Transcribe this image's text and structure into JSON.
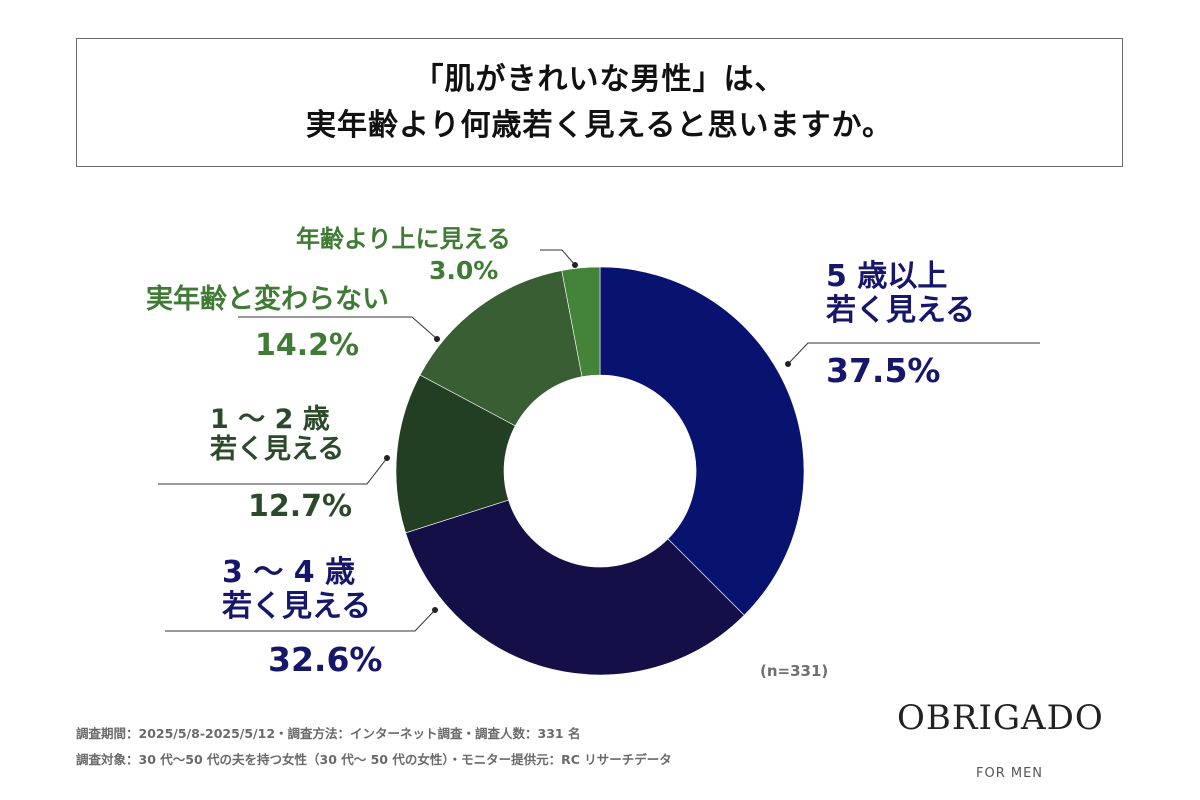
{
  "title": {
    "line1": "「肌がきれいな男性」は、",
    "line2": "実年齢より何歳若く見えると思いますか。"
  },
  "chart_data": {
    "type": "pie",
    "donut": true,
    "slices": [
      {
        "label_lines": [
          "5 歳以上",
          "若く見える"
        ],
        "value": 37.5,
        "value_text": "37.5%",
        "color": "#08136f"
      },
      {
        "label_lines": [
          "3 ～ 4 歳",
          "若く見える"
        ],
        "value": 32.6,
        "value_text": "32.6%",
        "color": "#150f48"
      },
      {
        "label_lines": [
          "1 ～ 2 歳",
          "若く見える"
        ],
        "value": 12.7,
        "value_text": "12.7%",
        "color": "#233f23"
      },
      {
        "label_lines": [
          "実年齢と変わらない"
        ],
        "value": 14.2,
        "value_text": "14.2%",
        "color": "#3a5e33"
      },
      {
        "label_lines": [
          "年齢より上に見える"
        ],
        "value": 3.0,
        "value_text": "3.0%",
        "color": "#44843a"
      }
    ],
    "sample_note": "(n=331)"
  },
  "footer": {
    "line1": "調査期間：2025/5/8-2025/5/12・調査方法：インターネット調査・調査人数：331 名",
    "line2": "調査対象：30 代～50 代の夫を持つ女性（30 代～ 50 代の女性）・モニター提供元：RC リサーチデータ"
  },
  "brand": {
    "name": "OBRIGADO",
    "tagline": "FOR MEN"
  }
}
